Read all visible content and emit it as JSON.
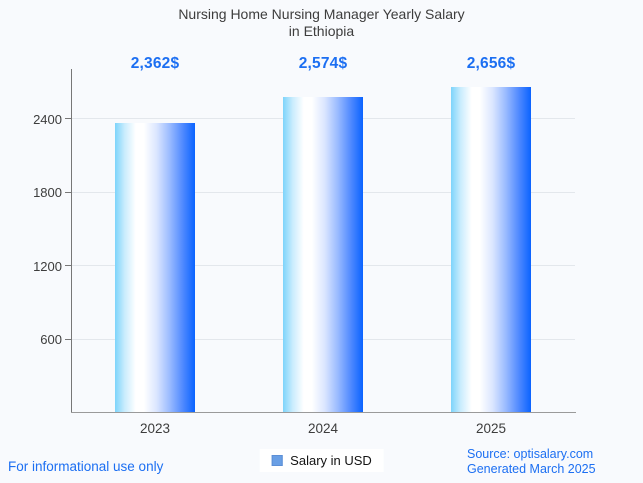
{
  "page": {
    "background": "#f8fafd"
  },
  "title": {
    "line1": "Nursing Home Nursing Manager Yearly Salary",
    "line2": "in Ethiopia"
  },
  "chart_data": {
    "type": "bar",
    "title": "Nursing Home Nursing Manager Yearly Salary in Ethiopia",
    "categories": [
      "2023",
      "2024",
      "2025"
    ],
    "series": [
      {
        "name": "Salary in USD",
        "values": [
          2362,
          2574,
          2656
        ]
      }
    ],
    "value_labels": [
      "2,362$",
      "2,574$",
      "2,656$"
    ],
    "xlabel": "",
    "ylabel": "",
    "ylim": [
      0,
      2800
    ],
    "yticks": [
      600,
      1200,
      1800,
      2400
    ],
    "grid": true,
    "legend_position": "bottom",
    "bar_gradient": [
      "#7dd4fb",
      "#ffffff",
      "#0a63ff"
    ]
  },
  "legend": {
    "label": "Salary in USD",
    "swatch_color": "#699fe5"
  },
  "footer": {
    "disclaimer": "For informational use only",
    "source": "Source: optisalary.com",
    "generated": "Generated March 2025"
  },
  "colors": {
    "value_label": "#1c6ff2",
    "grid": "#e3e7ec",
    "axis": "#777777",
    "text_dark": "#3d3d3d",
    "footer_blue": "#1c6ff2"
  }
}
